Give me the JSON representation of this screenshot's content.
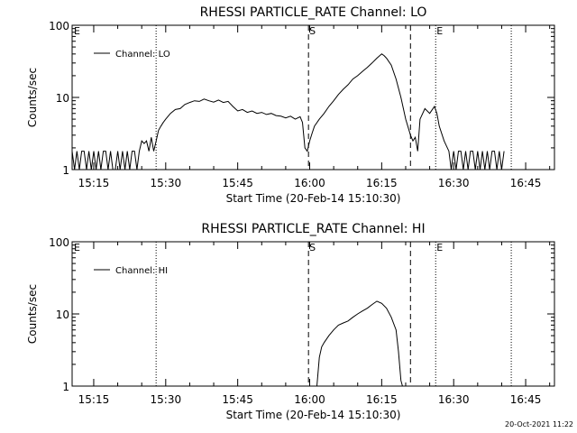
{
  "footer": {
    "date": "20-Oct-2021 11:22"
  },
  "chart_data": [
    {
      "type": "line",
      "title": "RHESSI PARTICLE_RATE Channel: LO",
      "xlabel": "Start Time (20-Feb-14 15:10:30)",
      "ylabel": "Counts/sec",
      "y_scale": "log",
      "ylim": [
        1,
        100
      ],
      "xlim": [
        "15:10:30",
        "16:51:00"
      ],
      "x_ticks": [
        "15:15",
        "15:30",
        "15:45",
        "16:00",
        "16:15",
        "16:30",
        "16:45"
      ],
      "y_ticks": [
        "1",
        "10",
        "100"
      ],
      "legend": {
        "position": "top-left",
        "entries": [
          "Channel: LO"
        ]
      },
      "markers": [
        {
          "label": "E",
          "time": "15:10:30",
          "style": "none"
        },
        {
          "label": "",
          "time": "15:28:00",
          "style": "dotted"
        },
        {
          "label": "S",
          "time": "15:59:45",
          "style": "dashed"
        },
        {
          "label": "",
          "time": "16:21:00",
          "style": "dashed"
        },
        {
          "label": "E",
          "time": "16:26:15",
          "style": "dotted"
        },
        {
          "label": "",
          "time": "16:42:00",
          "style": "dotted"
        }
      ],
      "series": [
        {
          "name": "Channel: LO",
          "points": [
            [
              "15:10:30",
              1.8
            ],
            [
              "15:11:00",
              1
            ],
            [
              "15:11:30",
              1.8
            ],
            [
              "15:12:00",
              1
            ],
            [
              "15:12:30",
              1.8
            ],
            [
              "15:13:00",
              1.8
            ],
            [
              "15:13:30",
              1
            ],
            [
              "15:14:00",
              1.8
            ],
            [
              "15:14:30",
              1
            ],
            [
              "15:15:00",
              1.8
            ],
            [
              "15:15:30",
              1
            ],
            [
              "15:16:00",
              1.8
            ],
            [
              "15:16:30",
              1
            ],
            [
              "15:17:00",
              1.8
            ],
            [
              "15:17:30",
              1.8
            ],
            [
              "15:18:00",
              1
            ],
            [
              "15:18:30",
              1.8
            ],
            [
              "15:19:00",
              1
            ],
            [
              "15:19:30",
              1
            ],
            [
              "15:20:00",
              1.8
            ],
            [
              "15:20:30",
              1
            ],
            [
              "15:21:00",
              1.8
            ],
            [
              "15:21:30",
              1
            ],
            [
              "15:22:00",
              1.8
            ],
            [
              "15:22:30",
              1
            ],
            [
              "15:23:00",
              1.8
            ],
            [
              "15:23:30",
              1.8
            ],
            [
              "15:24:00",
              1
            ],
            [
              "15:24:30",
              1.8
            ],
            [
              "15:25:00",
              2.5
            ],
            [
              "15:25:30",
              2.3
            ],
            [
              "15:26:00",
              2.5
            ],
            [
              "15:26:30",
              1.8
            ],
            [
              "15:27:00",
              2.8
            ],
            [
              "15:27:30",
              1.8
            ],
            [
              "15:28:00",
              2.5
            ],
            [
              "15:28:30",
              3.5
            ],
            [
              "15:29:00",
              4
            ],
            [
              "15:29:30",
              4.5
            ],
            [
              "15:30:00",
              5
            ],
            [
              "15:31:00",
              6
            ],
            [
              "15:32:00",
              6.8
            ],
            [
              "15:33:00",
              7
            ],
            [
              "15:34:00",
              8
            ],
            [
              "15:35:00",
              8.5
            ],
            [
              "15:36:00",
              9
            ],
            [
              "15:37:00",
              8.8
            ],
            [
              "15:38:00",
              9.5
            ],
            [
              "15:39:00",
              9
            ],
            [
              "15:40:00",
              8.6
            ],
            [
              "15:41:00",
              9.2
            ],
            [
              "15:42:00",
              8.5
            ],
            [
              "15:43:00",
              8.8
            ],
            [
              "15:44:00",
              7.5
            ],
            [
              "15:45:00",
              6.5
            ],
            [
              "15:46:00",
              6.8
            ],
            [
              "15:47:00",
              6.2
            ],
            [
              "15:48:00",
              6.5
            ],
            [
              "15:49:00",
              6
            ],
            [
              "15:50:00",
              6.2
            ],
            [
              "15:51:00",
              5.8
            ],
            [
              "15:52:00",
              6
            ],
            [
              "15:53:00",
              5.6
            ],
            [
              "15:54:00",
              5.5
            ],
            [
              "15:55:00",
              5.2
            ],
            [
              "15:56:00",
              5.5
            ],
            [
              "15:57:00",
              5
            ],
            [
              "15:58:00",
              5.4
            ],
            [
              "15:58:30",
              4.5
            ],
            [
              "15:59:00",
              2
            ],
            [
              "15:59:30",
              1.8
            ],
            [
              "16:00:00",
              2.5
            ],
            [
              "16:00:30",
              3.2
            ],
            [
              "16:01:00",
              4
            ],
            [
              "16:02:00",
              5
            ],
            [
              "16:03:00",
              6
            ],
            [
              "16:04:00",
              7.5
            ],
            [
              "16:05:00",
              9
            ],
            [
              "16:06:00",
              11
            ],
            [
              "16:07:00",
              13
            ],
            [
              "16:08:00",
              15
            ],
            [
              "16:09:00",
              18
            ],
            [
              "16:10:00",
              20
            ],
            [
              "16:11:00",
              23
            ],
            [
              "16:12:00",
              26
            ],
            [
              "16:13:00",
              30
            ],
            [
              "16:14:00",
              35
            ],
            [
              "16:15:00",
              40
            ],
            [
              "16:15:30",
              38
            ],
            [
              "16:16:00",
              35
            ],
            [
              "16:17:00",
              28
            ],
            [
              "16:18:00",
              18
            ],
            [
              "16:19:00",
              10
            ],
            [
              "16:20:00",
              5
            ],
            [
              "16:21:00",
              3
            ],
            [
              "16:21:30",
              2.5
            ],
            [
              "16:22:00",
              2.8
            ],
            [
              "16:22:30",
              1.8
            ],
            [
              "16:23:00",
              5
            ],
            [
              "16:24:00",
              7
            ],
            [
              "16:25:00",
              6
            ],
            [
              "16:26:00",
              7.5
            ],
            [
              "16:26:30",
              6
            ],
            [
              "16:27:00",
              4
            ],
            [
              "16:28:00",
              2.5
            ],
            [
              "16:29:00",
              1.8
            ],
            [
              "16:29:30",
              1
            ],
            [
              "16:30:00",
              1.8
            ],
            [
              "16:30:30",
              1
            ],
            [
              "16:31:00",
              1.8
            ],
            [
              "16:31:30",
              1.8
            ],
            [
              "16:32:00",
              1
            ],
            [
              "16:32:30",
              1.8
            ],
            [
              "16:33:00",
              1
            ],
            [
              "16:33:30",
              1.8
            ],
            [
              "16:34:00",
              1.8
            ],
            [
              "16:34:30",
              1
            ],
            [
              "16:35:00",
              1.8
            ],
            [
              "16:35:30",
              1
            ],
            [
              "16:36:00",
              1.8
            ],
            [
              "16:36:30",
              1
            ],
            [
              "16:37:00",
              1.8
            ],
            [
              "16:37:30",
              1
            ],
            [
              "16:38:00",
              1.8
            ],
            [
              "16:38:30",
              1.8
            ],
            [
              "16:39:00",
              1
            ],
            [
              "16:39:30",
              1.8
            ],
            [
              "16:40:00",
              1
            ],
            [
              "16:40:30",
              1.8
            ]
          ]
        }
      ]
    },
    {
      "type": "line",
      "title": "RHESSI PARTICLE_RATE Channel: HI",
      "xlabel": "Start Time (20-Feb-14 15:10:30)",
      "ylabel": "Counts/sec",
      "y_scale": "log",
      "ylim": [
        1,
        100
      ],
      "xlim": [
        "15:10:30",
        "16:51:00"
      ],
      "x_ticks": [
        "15:15",
        "15:30",
        "15:45",
        "16:00",
        "16:15",
        "16:30",
        "16:45"
      ],
      "y_ticks": [
        "1",
        "10",
        "100"
      ],
      "legend": {
        "position": "top-left",
        "entries": [
          "Channel: HI"
        ]
      },
      "markers": [
        {
          "label": "E",
          "time": "15:10:30",
          "style": "none"
        },
        {
          "label": "",
          "time": "15:28:00",
          "style": "dotted"
        },
        {
          "label": "S",
          "time": "15:59:45",
          "style": "dashed"
        },
        {
          "label": "",
          "time": "16:21:00",
          "style": "dashed"
        },
        {
          "label": "E",
          "time": "16:26:15",
          "style": "dotted"
        },
        {
          "label": "",
          "time": "16:42:00",
          "style": "dotted"
        }
      ],
      "series": [
        {
          "name": "Channel: HI",
          "points": [
            [
              "16:01:30",
              1
            ],
            [
              "16:02:00",
              2.5
            ],
            [
              "16:02:30",
              3.5
            ],
            [
              "16:03:00",
              4
            ],
            [
              "16:04:00",
              5
            ],
            [
              "16:05:00",
              6
            ],
            [
              "16:06:00",
              7
            ],
            [
              "16:07:00",
              7.5
            ],
            [
              "16:08:00",
              8
            ],
            [
              "16:09:00",
              9
            ],
            [
              "16:10:00",
              10
            ],
            [
              "16:11:00",
              11
            ],
            [
              "16:12:00",
              12
            ],
            [
              "16:13:00",
              13.5
            ],
            [
              "16:14:00",
              15
            ],
            [
              "16:15:00",
              14
            ],
            [
              "16:16:00",
              12
            ],
            [
              "16:17:00",
              9
            ],
            [
              "16:18:00",
              6
            ],
            [
              "16:18:30",
              3
            ],
            [
              "16:19:00",
              1.2
            ],
            [
              "16:19:20",
              1
            ]
          ]
        }
      ]
    }
  ]
}
